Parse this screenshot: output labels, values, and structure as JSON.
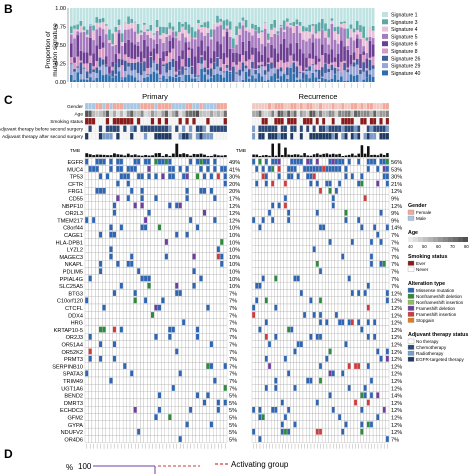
{
  "panel_b": {
    "label": "B",
    "ylabel": "Proportion of\nmutation signature",
    "yticks": [
      "0.00",
      "0.25",
      "0.50",
      "0.75",
      "1.00"
    ],
    "legend": [
      "Signature 1",
      "Signature 3",
      "Signature 4",
      "Signature 5",
      "Signature 6",
      "Signature 8",
      "Signature 26",
      "Signature 29",
      "Signature 40"
    ],
    "colors": [
      "#bfe3e3",
      "#5aa8a8",
      "#e9c0d8",
      "#a77bc0",
      "#6d3f93",
      "#d89ac4",
      "#3e5e9e",
      "#9aa6d6",
      "#2d6fae"
    ],
    "chart_data": {
      "type": "bar",
      "stacked": true,
      "ylim": [
        0,
        1
      ],
      "categories_count": 96,
      "series_names": [
        "Signature 1",
        "Signature 3",
        "Signature 4",
        "Signature 5",
        "Signature 6",
        "Signature 8",
        "Signature 26",
        "Signature 29",
        "Signature 40"
      ]
    }
  },
  "panel_c": {
    "label": "C",
    "primary_title": "Primary",
    "recurrence_title": "Recurrence",
    "annotation_rows": [
      "Gender",
      "Age",
      "Smoking status",
      "Adjuvant therapy before second surgery",
      "Adjuvant therapy after second surgery"
    ],
    "tmb_label": "TMB",
    "genes": [
      {
        "name": "EGFR",
        "p": "49%",
        "r": "56%"
      },
      {
        "name": "MUC4",
        "p": "41%",
        "r": "53%"
      },
      {
        "name": "TP53",
        "p": "30%",
        "r": "30%"
      },
      {
        "name": "CFTR",
        "p": "20%",
        "r": "21%"
      },
      {
        "name": "FRG1",
        "p": "20%",
        "r": "12%"
      },
      {
        "name": "CD55",
        "p": "17%",
        "r": "9%"
      },
      {
        "name": "NBPF10",
        "p": "12%",
        "r": "12%"
      },
      {
        "name": "OR2L3",
        "p": "12%",
        "r": "9%"
      },
      {
        "name": "TMEM217",
        "p": "12%",
        "r": "9%"
      },
      {
        "name": "C8orf44",
        "p": "10%",
        "r": "14%"
      },
      {
        "name": "CAGE1",
        "p": "10%",
        "r": "7%"
      },
      {
        "name": "HLA-DPB1",
        "p": "10%",
        "r": "7%"
      },
      {
        "name": "LYZL2",
        "p": "10%",
        "r": "7%"
      },
      {
        "name": "MAGEC3",
        "p": "10%",
        "r": "7%"
      },
      {
        "name": "NKAPL",
        "p": "10%",
        "r": "7%"
      },
      {
        "name": "PDLIM5",
        "p": "10%",
        "r": "7%"
      },
      {
        "name": "PPIAL4G",
        "p": "10%",
        "r": "7%"
      },
      {
        "name": "SLC25A5",
        "p": "10%",
        "r": "7%"
      },
      {
        "name": "BTG3",
        "p": "7%",
        "r": "12%"
      },
      {
        "name": "C10orf120",
        "p": "7%",
        "r": "12%"
      },
      {
        "name": "CTCFL",
        "p": "7%",
        "r": "12%"
      },
      {
        "name": "DDX4",
        "p": "7%",
        "r": "12%"
      },
      {
        "name": "HRG",
        "p": "7%",
        "r": "12%"
      },
      {
        "name": "KRTAP10-5",
        "p": "7%",
        "r": "12%"
      },
      {
        "name": "OR2J3",
        "p": "7%",
        "r": "12%"
      },
      {
        "name": "OR51A4",
        "p": "7%",
        "r": "12%"
      },
      {
        "name": "OR52K2",
        "p": "7%",
        "r": "12%"
      },
      {
        "name": "PRMT3",
        "p": "7%",
        "r": "12%"
      },
      {
        "name": "SERPINB10",
        "p": "7%",
        "r": "12%"
      },
      {
        "name": "SPATA3",
        "p": "7%",
        "r": "12%"
      },
      {
        "name": "TRIM49",
        "p": "7%",
        "r": "12%"
      },
      {
        "name": "UGT1A6",
        "p": "7%",
        "r": "12%"
      },
      {
        "name": "BEND2",
        "p": "5%",
        "r": "14%"
      },
      {
        "name": "DMRT3",
        "p": "5%",
        "r": "12%"
      },
      {
        "name": "ECHDC3",
        "p": "5%",
        "r": "12%"
      },
      {
        "name": "GFM2",
        "p": "5%",
        "r": "12%"
      },
      {
        "name": "GYPA",
        "p": "5%",
        "r": "12%"
      },
      {
        "name": "NDUFV2",
        "p": "5%",
        "r": "12%"
      },
      {
        "name": "OR4D6",
        "p": "5%",
        "r": "7%"
      }
    ],
    "legend": {
      "gender_title": "Gender",
      "gender_items": [
        {
          "label": "Female",
          "color": "#f2a79b"
        },
        {
          "label": "Male",
          "color": "#a9c7e3"
        }
      ],
      "age_title": "Age",
      "age_ticks": [
        "40",
        "50",
        "60",
        "70",
        "80"
      ],
      "smoking_title": "Smoking status",
      "smoking_items": [
        {
          "label": "Ever",
          "color": "#8b1a1a"
        },
        {
          "label": "Never",
          "color": "#ffffff"
        }
      ],
      "alteration_title": "Alteration type",
      "alteration_items": [
        {
          "label": "Missense mutation",
          "color": "#2f66b3"
        },
        {
          "label": "Nonframeshift deletion",
          "color": "#2e8b3d"
        },
        {
          "label": "Nonframeshift insertion",
          "color": "#8fbf5a"
        },
        {
          "label": "Frameshift deletion",
          "color": "#6f3fa0"
        },
        {
          "label": "Frameshift insertion",
          "color": "#d03b3b"
        },
        {
          "label": "Stopgain",
          "color": "#e07a20"
        }
      ],
      "adjuvant_title": "Adjuvant therapy status",
      "adjuvant_items": [
        {
          "label": "No therapy",
          "color": "#ffffff"
        },
        {
          "label": "Chemotherapy",
          "color": "#2b4a7a"
        },
        {
          "label": "Radiotherapy",
          "color": "#7a9cc8"
        },
        {
          "label": "EGFR-targeted therapy",
          "color": "#1f3b63"
        }
      ]
    }
  },
  "panel_d": {
    "label": "D",
    "ylabel": "%",
    "ytick": "100",
    "legend_label": "Activating group"
  }
}
